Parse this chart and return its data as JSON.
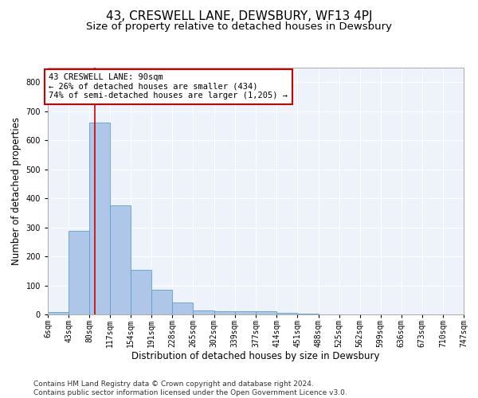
{
  "title": "43, CRESWELL LANE, DEWSBURY, WF13 4PJ",
  "subtitle": "Size of property relative to detached houses in Dewsbury",
  "xlabel": "Distribution of detached houses by size in Dewsbury",
  "ylabel": "Number of detached properties",
  "bar_color": "#aec6e8",
  "bar_edge_color": "#5a9fd4",
  "background_color": "#eef2fa",
  "grid_color": "#ffffff",
  "annotation_box_color": "#cc0000",
  "annotation_text": "43 CRESWELL LANE: 90sqm\n← 26% of detached houses are smaller (434)\n74% of semi-detached houses are larger (1,205) →",
  "property_line_x": 90,
  "property_line_color": "#cc0000",
  "bin_edges": [
    6,
    43,
    80,
    117,
    154,
    191,
    228,
    265,
    302,
    339,
    377,
    414,
    451,
    488,
    525,
    562,
    599,
    636,
    673,
    710,
    747
  ],
  "bin_labels": [
    "6sqm",
    "43sqm",
    "80sqm",
    "117sqm",
    "154sqm",
    "191sqm",
    "228sqm",
    "265sqm",
    "302sqm",
    "339sqm",
    "377sqm",
    "414sqm",
    "451sqm",
    "488sqm",
    "525sqm",
    "562sqm",
    "599sqm",
    "636sqm",
    "673sqm",
    "710sqm",
    "747sqm"
  ],
  "bar_heights": [
    7,
    288,
    660,
    375,
    153,
    85,
    42,
    14,
    11,
    10,
    10,
    5,
    2,
    1,
    1,
    0,
    0,
    0,
    0,
    0
  ],
  "ylim": [
    0,
    850
  ],
  "yticks": [
    0,
    100,
    200,
    300,
    400,
    500,
    600,
    700,
    800
  ],
  "footer": "Contains HM Land Registry data © Crown copyright and database right 2024.\nContains public sector information licensed under the Open Government Licence v3.0.",
  "title_fontsize": 11,
  "subtitle_fontsize": 9.5,
  "label_fontsize": 8.5,
  "tick_fontsize": 7,
  "footer_fontsize": 6.5,
  "annotation_fontsize": 7.5
}
